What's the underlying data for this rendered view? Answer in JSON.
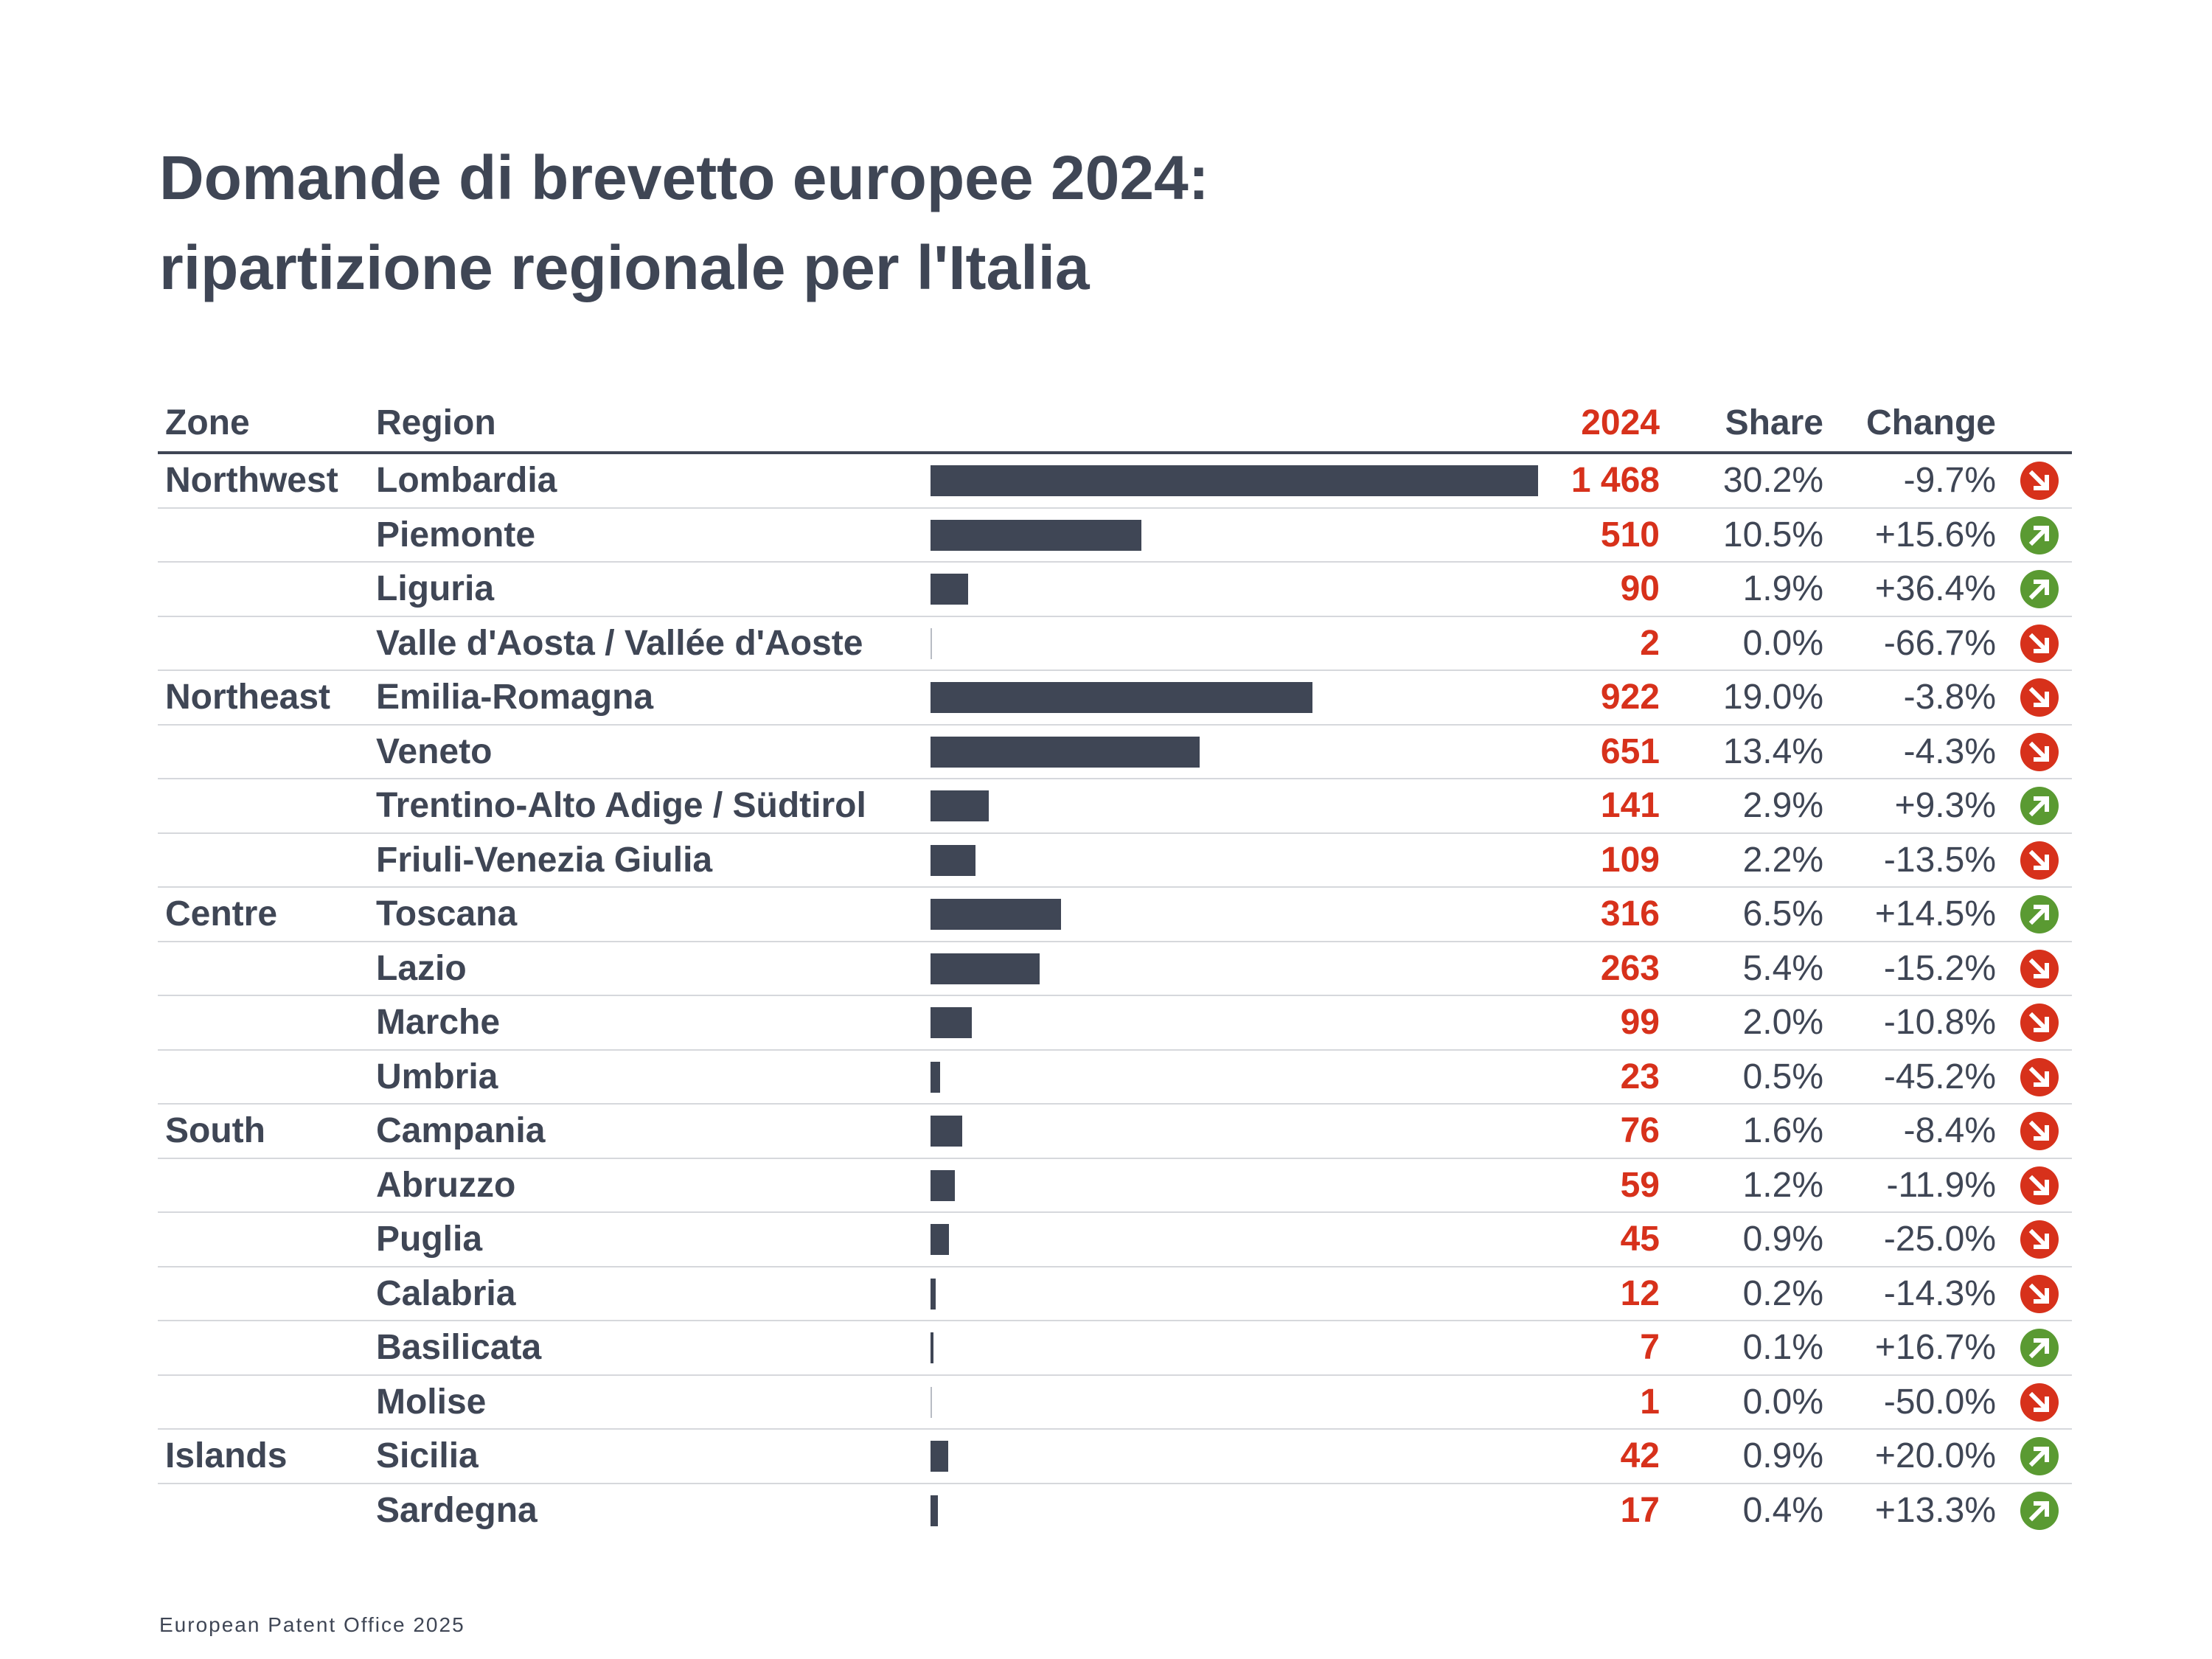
{
  "title_line1": "Domande di brevetto europee 2024:",
  "title_line2": "ripartizione regionale per l'Italia",
  "footer": "European Patent Office 2025",
  "colors": {
    "text": "#3f4655",
    "accent": "#d7311b",
    "up": "#5a9a32",
    "down": "#d7311b",
    "bar": "#3f4655"
  },
  "chart_data": {
    "type": "table",
    "title": "Domande di brevetto europee 2024: ripartizione regionale per l'Italia",
    "columns": [
      "Zone",
      "Region",
      "2024",
      "Share",
      "Change"
    ],
    "max_value": 1468,
    "rows": [
      {
        "zone": "Northwest",
        "region": "Lombardia",
        "value": 1468,
        "value_label": "1 468",
        "share": "30.2%",
        "change": "-9.7%",
        "trend": "down"
      },
      {
        "zone": "",
        "region": "Piemonte",
        "value": 510,
        "value_label": "510",
        "share": "10.5%",
        "change": "+15.6%",
        "trend": "up"
      },
      {
        "zone": "",
        "region": "Liguria",
        "value": 90,
        "value_label": "90",
        "share": "1.9%",
        "change": "+36.4%",
        "trend": "up"
      },
      {
        "zone": "",
        "region": "Valle d'Aosta / Vallée d'Aoste",
        "value": 2,
        "value_label": "2",
        "share": "0.0%",
        "change": "-66.7%",
        "trend": "down"
      },
      {
        "zone": "Northeast",
        "region": "Emilia-Romagna",
        "value": 922,
        "value_label": "922",
        "share": "19.0%",
        "change": "-3.8%",
        "trend": "down"
      },
      {
        "zone": "",
        "region": "Veneto",
        "value": 651,
        "value_label": "651",
        "share": "13.4%",
        "change": "-4.3%",
        "trend": "down"
      },
      {
        "zone": "",
        "region": "Trentino-Alto Adige / Südtirol",
        "value": 141,
        "value_label": "141",
        "share": "2.9%",
        "change": "+9.3%",
        "trend": "up"
      },
      {
        "zone": "",
        "region": "Friuli-Venezia Giulia",
        "value": 109,
        "value_label": "109",
        "share": "2.2%",
        "change": "-13.5%",
        "trend": "down"
      },
      {
        "zone": "Centre",
        "region": "Toscana",
        "value": 316,
        "value_label": "316",
        "share": "6.5%",
        "change": "+14.5%",
        "trend": "up"
      },
      {
        "zone": "",
        "region": "Lazio",
        "value": 263,
        "value_label": "263",
        "share": "5.4%",
        "change": "-15.2%",
        "trend": "down"
      },
      {
        "zone": "",
        "region": "Marche",
        "value": 99,
        "value_label": "99",
        "share": "2.0%",
        "change": "-10.8%",
        "trend": "down"
      },
      {
        "zone": "",
        "region": "Umbria",
        "value": 23,
        "value_label": "23",
        "share": "0.5%",
        "change": "-45.2%",
        "trend": "down"
      },
      {
        "zone": "South",
        "region": "Campania",
        "value": 76,
        "value_label": "76",
        "share": "1.6%",
        "change": "-8.4%",
        "trend": "down"
      },
      {
        "zone": "",
        "region": "Abruzzo",
        "value": 59,
        "value_label": "59",
        "share": "1.2%",
        "change": "-11.9%",
        "trend": "down"
      },
      {
        "zone": "",
        "region": "Puglia",
        "value": 45,
        "value_label": "45",
        "share": "0.9%",
        "change": "-25.0%",
        "trend": "down"
      },
      {
        "zone": "",
        "region": "Calabria",
        "value": 12,
        "value_label": "12",
        "share": "0.2%",
        "change": "-14.3%",
        "trend": "down"
      },
      {
        "zone": "",
        "region": "Basilicata",
        "value": 7,
        "value_label": "7",
        "share": "0.1%",
        "change": "+16.7%",
        "trend": "up"
      },
      {
        "zone": "",
        "region": "Molise",
        "value": 1,
        "value_label": "1",
        "share": "0.0%",
        "change": "-50.0%",
        "trend": "down"
      },
      {
        "zone": "Islands",
        "region": "Sicilia",
        "value": 42,
        "value_label": "42",
        "share": "0.9%",
        "change": "+20.0%",
        "trend": "up"
      },
      {
        "zone": "",
        "region": "Sardegna",
        "value": 17,
        "value_label": "17",
        "share": "0.4%",
        "change": "+13.3%",
        "trend": "up"
      }
    ]
  }
}
